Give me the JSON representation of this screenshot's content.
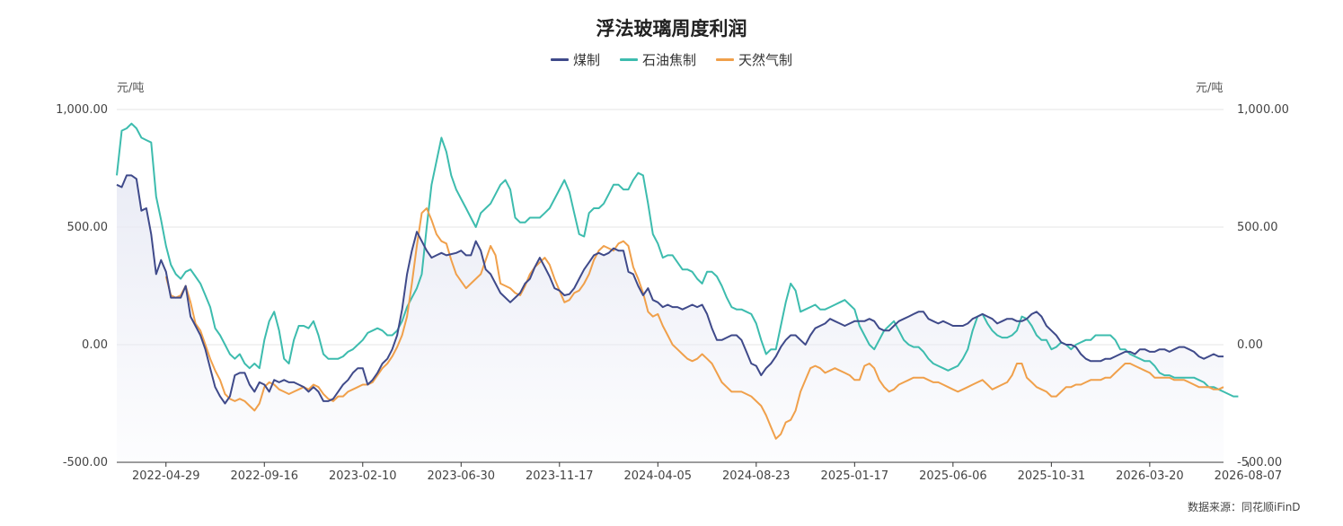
{
  "chart_data": {
    "type": "line",
    "title": "浮法玻璃周度利润",
    "unit_left": "元/吨",
    "unit_right": "元/吨",
    "source": "数据来源：同花顺iFinD",
    "ylim": [
      -500,
      1000
    ],
    "y_ticks": [
      "1,000.00",
      "500.00",
      "0.00",
      "-500.00"
    ],
    "y_tick_values": [
      1000,
      500,
      0,
      -500
    ],
    "x_tick_labels": [
      "2022-04-29",
      "2022-09-16",
      "2023-02-10",
      "2023-06-30",
      "2023-11-17",
      "2024-04-05",
      "2024-08-23",
      "2025-01-17",
      "2025-06-06",
      "2025-10-31",
      "2026-03-20",
      "2026-08-07"
    ],
    "x_tick_index": [
      10,
      30,
      50,
      70,
      90,
      110,
      130,
      150,
      170,
      190,
      210,
      230
    ],
    "grid": true,
    "legend_position": "top-center",
    "colors": {
      "coal": "#3f4a8a",
      "oil_coke": "#3dbcae",
      "gas": "#f0a04b",
      "area_fill": "#e9ebf5"
    },
    "series": [
      {
        "name": "煤制",
        "values": [
          680,
          670,
          720,
          720,
          705,
          570,
          580,
          470,
          300,
          360,
          310,
          200,
          200,
          200,
          250,
          120,
          80,
          40,
          -20,
          -100,
          -180,
          -220,
          -250,
          -220,
          -130,
          -120,
          -120,
          -170,
          -200,
          -160,
          -170,
          -200,
          -150,
          -160,
          -150,
          -160,
          -160,
          -170,
          -180,
          -200,
          -180,
          -200,
          -240,
          -240,
          -230,
          -200,
          -170,
          -150,
          -120,
          -100,
          -100,
          -170,
          -150,
          -120,
          -80,
          -60,
          -20,
          40,
          150,
          300,
          400,
          480,
          440,
          400,
          370,
          380,
          390,
          380,
          385,
          390,
          400,
          380,
          380,
          440,
          400,
          320,
          300,
          260,
          220,
          200,
          180,
          200,
          220,
          260,
          280,
          330,
          370,
          330,
          290,
          240,
          230,
          210,
          215,
          240,
          280,
          320,
          350,
          380,
          390,
          380,
          390,
          410,
          400,
          400,
          310,
          300,
          250,
          210,
          240,
          190,
          180,
          160,
          170,
          160,
          160,
          150,
          160,
          170,
          160,
          170,
          130,
          70,
          20,
          20,
          30,
          40,
          40,
          20,
          -30,
          -80,
          -90,
          -130,
          -100,
          -80,
          -50,
          -10,
          20,
          40,
          40,
          20,
          0,
          40,
          70,
          80,
          90,
          110,
          100,
          90,
          80,
          90,
          100,
          100,
          100,
          110,
          100,
          70,
          60,
          60,
          80,
          100,
          110,
          120,
          130,
          140,
          140,
          110,
          100,
          90,
          100,
          90,
          80,
          80,
          80,
          90,
          110,
          120,
          130,
          120,
          110,
          90,
          100,
          110,
          110,
          100,
          100,
          110,
          130,
          140,
          120,
          80,
          60,
          40,
          10,
          0,
          0,
          -10,
          -40,
          -60,
          -70,
          -70,
          -70,
          -60,
          -60,
          -50,
          -40,
          -30,
          -30,
          -40,
          -20,
          -20,
          -30,
          -30,
          -20,
          -20,
          -30,
          -20,
          -10,
          -10,
          -20,
          -30,
          -50,
          -60,
          -50,
          -40,
          -50,
          -50
        ]
      },
      {
        "name": "石油焦制",
        "values": [
          720,
          910,
          920,
          940,
          920,
          880,
          870,
          860,
          630,
          530,
          420,
          340,
          300,
          280,
          310,
          320,
          290,
          260,
          210,
          160,
          70,
          40,
          0,
          -40,
          -60,
          -40,
          -80,
          -100,
          -80,
          -100,
          20,
          100,
          140,
          60,
          -60,
          -80,
          20,
          80,
          80,
          70,
          100,
          40,
          -40,
          -60,
          -60,
          -60,
          -50,
          -30,
          -20,
          0,
          20,
          50,
          60,
          70,
          60,
          40,
          40,
          60,
          100,
          160,
          200,
          240,
          300,
          500,
          680,
          780,
          880,
          820,
          720,
          660,
          620,
          580,
          540,
          500,
          560,
          580,
          600,
          640,
          680,
          700,
          660,
          540,
          520,
          520,
          540,
          540,
          540,
          560,
          580,
          620,
          660,
          700,
          650,
          560,
          470,
          460,
          560,
          580,
          580,
          600,
          640,
          680,
          680,
          660,
          660,
          700,
          730,
          720,
          600,
          470,
          430,
          370,
          380,
          380,
          350,
          320,
          320,
          310,
          280,
          260,
          310,
          310,
          290,
          250,
          200,
          160,
          150,
          150,
          140,
          130,
          90,
          20,
          -40,
          -20,
          -20,
          80,
          180,
          260,
          230,
          140,
          150,
          160,
          170,
          150,
          150,
          160,
          170,
          180,
          190,
          170,
          150,
          80,
          40,
          0,
          -20,
          20,
          60,
          80,
          100,
          60,
          20,
          0,
          -10,
          -10,
          -30,
          -60,
          -80,
          -90,
          -100,
          -110,
          -100,
          -90,
          -60,
          -20,
          60,
          120,
          130,
          90,
          60,
          40,
          30,
          30,
          40,
          60,
          120,
          110,
          80,
          40,
          20,
          20,
          -20,
          -10,
          10,
          0,
          -20,
          0,
          10,
          20,
          20,
          40,
          40,
          40,
          40,
          20,
          -20,
          -20,
          -40,
          -50,
          -60,
          -70,
          -70,
          -90,
          -120,
          -130,
          -130,
          -140,
          -140,
          -140,
          -140,
          -140,
          -150,
          -160,
          -180,
          -180,
          -190,
          -200,
          -210,
          -220,
          -220
        ]
      },
      {
        "name": "天然气制",
        "values": [
          null,
          null,
          null,
          null,
          null,
          null,
          null,
          null,
          null,
          null,
          290,
          210,
          200,
          210,
          250,
          180,
          90,
          60,
          0,
          -60,
          -110,
          -150,
          -210,
          -230,
          -240,
          -230,
          -240,
          -260,
          -280,
          -250,
          -180,
          -160,
          -170,
          -190,
          -200,
          -210,
          -200,
          -190,
          -180,
          -190,
          -170,
          -180,
          -210,
          -230,
          -240,
          -220,
          -220,
          -200,
          -190,
          -180,
          -170,
          -170,
          -160,
          -130,
          -100,
          -80,
          -50,
          -10,
          40,
          120,
          260,
          420,
          560,
          580,
          530,
          470,
          440,
          430,
          360,
          300,
          270,
          240,
          260,
          280,
          300,
          360,
          420,
          380,
          260,
          250,
          240,
          220,
          210,
          250,
          300,
          330,
          350,
          370,
          340,
          280,
          230,
          180,
          190,
          220,
          230,
          260,
          300,
          360,
          400,
          420,
          410,
          400,
          430,
          440,
          420,
          330,
          280,
          220,
          140,
          120,
          130,
          80,
          40,
          0,
          -20,
          -40,
          -60,
          -70,
          -60,
          -40,
          -60,
          -80,
          -120,
          -160,
          -180,
          -200,
          -200,
          -200,
          -210,
          -220,
          -240,
          -260,
          -300,
          -350,
          -400,
          -380,
          -330,
          -320,
          -280,
          -200,
          -150,
          -100,
          -90,
          -100,
          -120,
          -110,
          -100,
          -110,
          -120,
          -130,
          -150,
          -150,
          -90,
          -80,
          -100,
          -150,
          -180,
          -200,
          -190,
          -170,
          -160,
          -150,
          -140,
          -140,
          -140,
          -150,
          -160,
          -160,
          -170,
          -180,
          -190,
          -200,
          -190,
          -180,
          -170,
          -160,
          -150,
          -170,
          -190,
          -180,
          -170,
          -160,
          -130,
          -80,
          -80,
          -140,
          -160,
          -180,
          -190,
          -200,
          -220,
          -220,
          -200,
          -180,
          -180,
          -170,
          -170,
          -160,
          -150,
          -150,
          -150,
          -140,
          -140,
          -120,
          -100,
          -80,
          -80,
          -90,
          -100,
          -110,
          -120,
          -140,
          -140,
          -140,
          -140,
          -150,
          -150,
          -150,
          -160,
          -170,
          -180,
          -180,
          -180,
          -190,
          -190,
          -180
        ]
      }
    ]
  }
}
